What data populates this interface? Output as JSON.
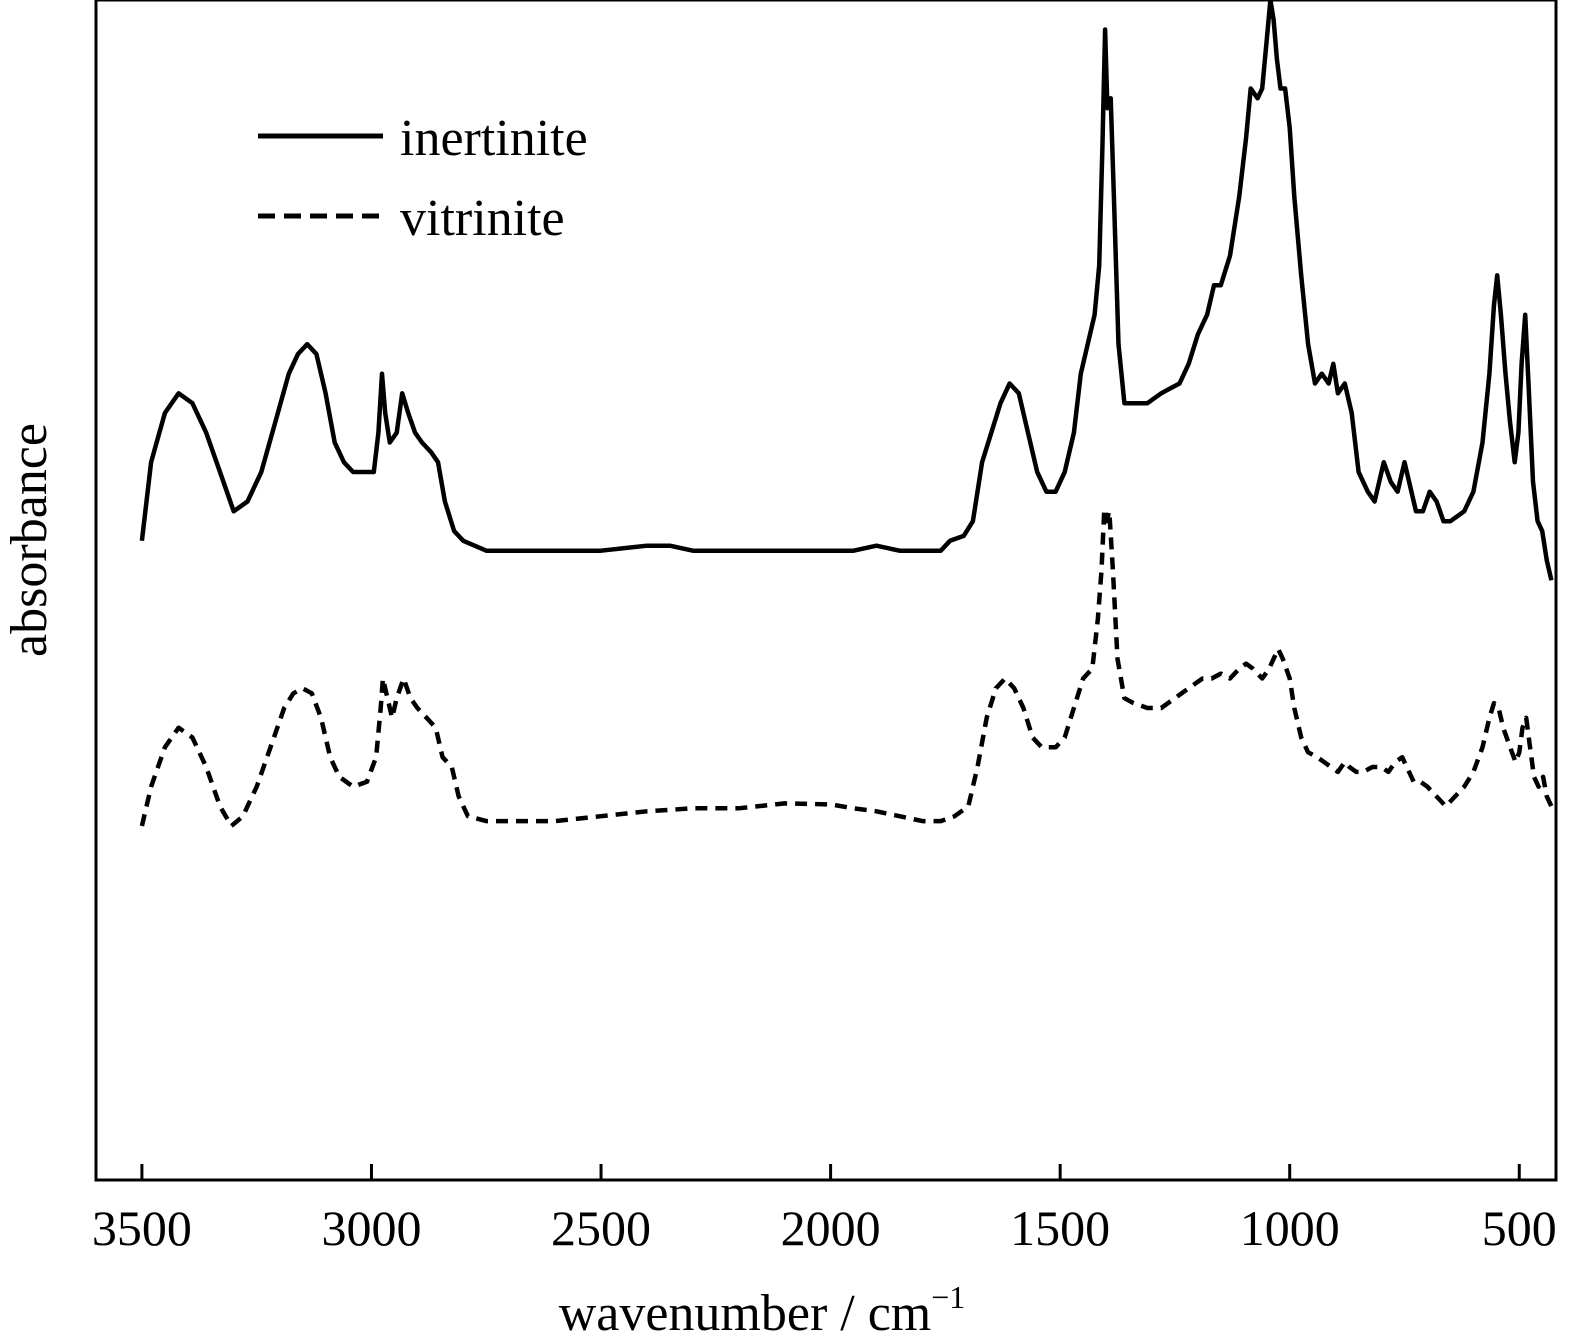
{
  "chart_data": {
    "type": "line",
    "title": "",
    "xlabel": "wavenumber / cm",
    "xlabel_superscript": "−1",
    "ylabel": "absorbance",
    "xlim": [
      3600,
      420
    ],
    "x_reversed": true,
    "ylim": [
      -0.2,
      1.0
    ],
    "y_ticks_shown": false,
    "grid": false,
    "legend_position": "top-left",
    "x_ticks": [
      3500,
      3000,
      2500,
      2000,
      1500,
      1000,
      500
    ],
    "x_tick_labels": [
      "3500",
      "3000",
      "2500",
      "2000",
      "1500",
      "1000",
      "500"
    ],
    "series": [
      {
        "name": "inertinite",
        "line_style": "solid",
        "color": "#000000",
        "points": [
          [
            3500,
            0.45
          ],
          [
            3480,
            0.53
          ],
          [
            3450,
            0.58
          ],
          [
            3420,
            0.6
          ],
          [
            3390,
            0.59
          ],
          [
            3360,
            0.56
          ],
          [
            3330,
            0.52
          ],
          [
            3300,
            0.48
          ],
          [
            3270,
            0.49
          ],
          [
            3240,
            0.52
          ],
          [
            3210,
            0.57
          ],
          [
            3180,
            0.62
          ],
          [
            3160,
            0.64
          ],
          [
            3140,
            0.65
          ],
          [
            3120,
            0.64
          ],
          [
            3100,
            0.6
          ],
          [
            3080,
            0.55
          ],
          [
            3060,
            0.53
          ],
          [
            3040,
            0.52
          ],
          [
            3010,
            0.52
          ],
          [
            2995,
            0.52
          ],
          [
            2985,
            0.56
          ],
          [
            2977,
            0.62
          ],
          [
            2970,
            0.58
          ],
          [
            2960,
            0.55
          ],
          [
            2945,
            0.56
          ],
          [
            2933,
            0.6
          ],
          [
            2920,
            0.58
          ],
          [
            2905,
            0.56
          ],
          [
            2890,
            0.55
          ],
          [
            2870,
            0.54
          ],
          [
            2855,
            0.53
          ],
          [
            2840,
            0.49
          ],
          [
            2820,
            0.46
          ],
          [
            2800,
            0.45
          ],
          [
            2750,
            0.44
          ],
          [
            2700,
            0.44
          ],
          [
            2600,
            0.44
          ],
          [
            2500,
            0.44
          ],
          [
            2400,
            0.445
          ],
          [
            2350,
            0.445
          ],
          [
            2300,
            0.44
          ],
          [
            2200,
            0.44
          ],
          [
            2100,
            0.44
          ],
          [
            2000,
            0.44
          ],
          [
            1950,
            0.44
          ],
          [
            1900,
            0.445
          ],
          [
            1850,
            0.44
          ],
          [
            1800,
            0.44
          ],
          [
            1760,
            0.44
          ],
          [
            1740,
            0.45
          ],
          [
            1710,
            0.455
          ],
          [
            1690,
            0.47
          ],
          [
            1670,
            0.53
          ],
          [
            1650,
            0.56
          ],
          [
            1630,
            0.59
          ],
          [
            1610,
            0.61
          ],
          [
            1590,
            0.6
          ],
          [
            1570,
            0.56
          ],
          [
            1550,
            0.52
          ],
          [
            1530,
            0.5
          ],
          [
            1510,
            0.5
          ],
          [
            1490,
            0.52
          ],
          [
            1470,
            0.56
          ],
          [
            1455,
            0.62
          ],
          [
            1440,
            0.65
          ],
          [
            1425,
            0.68
          ],
          [
            1415,
            0.73
          ],
          [
            1408,
            0.85
          ],
          [
            1402,
            0.97
          ],
          [
            1397,
            0.89
          ],
          [
            1390,
            0.9
          ],
          [
            1383,
            0.8
          ],
          [
            1373,
            0.65
          ],
          [
            1360,
            0.59
          ],
          [
            1340,
            0.59
          ],
          [
            1310,
            0.59
          ],
          [
            1280,
            0.6
          ],
          [
            1260,
            0.605
          ],
          [
            1240,
            0.61
          ],
          [
            1220,
            0.63
          ],
          [
            1200,
            0.66
          ],
          [
            1180,
            0.68
          ],
          [
            1165,
            0.71
          ],
          [
            1150,
            0.71
          ],
          [
            1130,
            0.74
          ],
          [
            1110,
            0.8
          ],
          [
            1095,
            0.86
          ],
          [
            1085,
            0.91
          ],
          [
            1070,
            0.9
          ],
          [
            1060,
            0.91
          ],
          [
            1050,
            0.96
          ],
          [
            1042,
            1.0
          ],
          [
            1035,
            0.98
          ],
          [
            1028,
            0.94
          ],
          [
            1020,
            0.91
          ],
          [
            1010,
            0.91
          ],
          [
            1000,
            0.87
          ],
          [
            990,
            0.8
          ],
          [
            975,
            0.72
          ],
          [
            960,
            0.65
          ],
          [
            945,
            0.61
          ],
          [
            930,
            0.62
          ],
          [
            915,
            0.61
          ],
          [
            905,
            0.63
          ],
          [
            895,
            0.6
          ],
          [
            880,
            0.61
          ],
          [
            865,
            0.58
          ],
          [
            850,
            0.52
          ],
          [
            830,
            0.5
          ],
          [
            815,
            0.49
          ],
          [
            805,
            0.51
          ],
          [
            795,
            0.53
          ],
          [
            780,
            0.51
          ],
          [
            765,
            0.5
          ],
          [
            750,
            0.53
          ],
          [
            740,
            0.51
          ],
          [
            725,
            0.48
          ],
          [
            710,
            0.48
          ],
          [
            695,
            0.5
          ],
          [
            680,
            0.49
          ],
          [
            665,
            0.47
          ],
          [
            650,
            0.47
          ],
          [
            620,
            0.48
          ],
          [
            600,
            0.5
          ],
          [
            580,
            0.55
          ],
          [
            565,
            0.62
          ],
          [
            555,
            0.69
          ],
          [
            548,
            0.72
          ],
          [
            540,
            0.68
          ],
          [
            530,
            0.62
          ],
          [
            520,
            0.57
          ],
          [
            510,
            0.53
          ],
          [
            502,
            0.56
          ],
          [
            495,
            0.63
          ],
          [
            487,
            0.68
          ],
          [
            480,
            0.61
          ],
          [
            470,
            0.51
          ],
          [
            460,
            0.47
          ],
          [
            450,
            0.46
          ],
          [
            440,
            0.43
          ],
          [
            430,
            0.41
          ]
        ]
      },
      {
        "name": "vitrinite",
        "line_style": "dashed",
        "color": "#000000",
        "points": [
          [
            3500,
            0.16
          ],
          [
            3480,
            0.2
          ],
          [
            3450,
            0.24
          ],
          [
            3420,
            0.26
          ],
          [
            3390,
            0.25
          ],
          [
            3360,
            0.22
          ],
          [
            3330,
            0.18
          ],
          [
            3305,
            0.16
          ],
          [
            3280,
            0.17
          ],
          [
            3250,
            0.2
          ],
          [
            3220,
            0.24
          ],
          [
            3190,
            0.28
          ],
          [
            3170,
            0.295
          ],
          [
            3150,
            0.3
          ],
          [
            3130,
            0.295
          ],
          [
            3110,
            0.27
          ],
          [
            3090,
            0.23
          ],
          [
            3070,
            0.21
          ],
          [
            3040,
            0.2
          ],
          [
            3010,
            0.205
          ],
          [
            2990,
            0.23
          ],
          [
            2980,
            0.28
          ],
          [
            2975,
            0.31
          ],
          [
            2965,
            0.29
          ],
          [
            2955,
            0.27
          ],
          [
            2945,
            0.29
          ],
          [
            2930,
            0.31
          ],
          [
            2915,
            0.29
          ],
          [
            2900,
            0.28
          ],
          [
            2880,
            0.27
          ],
          [
            2860,
            0.26
          ],
          [
            2845,
            0.23
          ],
          [
            2825,
            0.22
          ],
          [
            2810,
            0.19
          ],
          [
            2790,
            0.17
          ],
          [
            2750,
            0.165
          ],
          [
            2700,
            0.165
          ],
          [
            2600,
            0.165
          ],
          [
            2500,
            0.17
          ],
          [
            2400,
            0.175
          ],
          [
            2300,
            0.178
          ],
          [
            2200,
            0.178
          ],
          [
            2100,
            0.183
          ],
          [
            2000,
            0.182
          ],
          [
            1950,
            0.178
          ],
          [
            1900,
            0.175
          ],
          [
            1850,
            0.17
          ],
          [
            1800,
            0.165
          ],
          [
            1760,
            0.165
          ],
          [
            1730,
            0.17
          ],
          [
            1700,
            0.18
          ],
          [
            1680,
            0.22
          ],
          [
            1660,
            0.27
          ],
          [
            1640,
            0.3
          ],
          [
            1620,
            0.31
          ],
          [
            1600,
            0.3
          ],
          [
            1580,
            0.28
          ],
          [
            1560,
            0.25
          ],
          [
            1540,
            0.24
          ],
          [
            1510,
            0.24
          ],
          [
            1490,
            0.25
          ],
          [
            1470,
            0.28
          ],
          [
            1450,
            0.31
          ],
          [
            1430,
            0.32
          ],
          [
            1418,
            0.37
          ],
          [
            1410,
            0.42
          ],
          [
            1404,
            0.48
          ],
          [
            1399,
            0.47
          ],
          [
            1393,
            0.48
          ],
          [
            1385,
            0.42
          ],
          [
            1375,
            0.33
          ],
          [
            1360,
            0.29
          ],
          [
            1340,
            0.285
          ],
          [
            1310,
            0.28
          ],
          [
            1280,
            0.28
          ],
          [
            1250,
            0.29
          ],
          [
            1220,
            0.3
          ],
          [
            1190,
            0.31
          ],
          [
            1170,
            0.31
          ],
          [
            1150,
            0.315
          ],
          [
            1130,
            0.31
          ],
          [
            1110,
            0.32
          ],
          [
            1095,
            0.325
          ],
          [
            1080,
            0.32
          ],
          [
            1060,
            0.31
          ],
          [
            1045,
            0.32
          ],
          [
            1035,
            0.33
          ],
          [
            1025,
            0.34
          ],
          [
            1015,
            0.33
          ],
          [
            1000,
            0.31
          ],
          [
            990,
            0.28
          ],
          [
            975,
            0.25
          ],
          [
            960,
            0.235
          ],
          [
            940,
            0.23
          ],
          [
            925,
            0.225
          ],
          [
            910,
            0.22
          ],
          [
            895,
            0.215
          ],
          [
            880,
            0.225
          ],
          [
            870,
            0.22
          ],
          [
            855,
            0.215
          ],
          [
            840,
            0.215
          ],
          [
            820,
            0.22
          ],
          [
            800,
            0.22
          ],
          [
            785,
            0.215
          ],
          [
            770,
            0.225
          ],
          [
            755,
            0.23
          ],
          [
            745,
            0.22
          ],
          [
            730,
            0.205
          ],
          [
            715,
            0.205
          ],
          [
            700,
            0.2
          ],
          [
            680,
            0.19
          ],
          [
            660,
            0.18
          ],
          [
            640,
            0.19
          ],
          [
            620,
            0.2
          ],
          [
            600,
            0.215
          ],
          [
            580,
            0.24
          ],
          [
            565,
            0.27
          ],
          [
            555,
            0.285
          ],
          [
            545,
            0.28
          ],
          [
            535,
            0.26
          ],
          [
            520,
            0.24
          ],
          [
            508,
            0.225
          ],
          [
            500,
            0.235
          ],
          [
            493,
            0.26
          ],
          [
            485,
            0.27
          ],
          [
            478,
            0.245
          ],
          [
            468,
            0.21
          ],
          [
            458,
            0.2
          ],
          [
            448,
            0.21
          ],
          [
            440,
            0.19
          ],
          [
            430,
            0.18
          ]
        ]
      }
    ]
  }
}
